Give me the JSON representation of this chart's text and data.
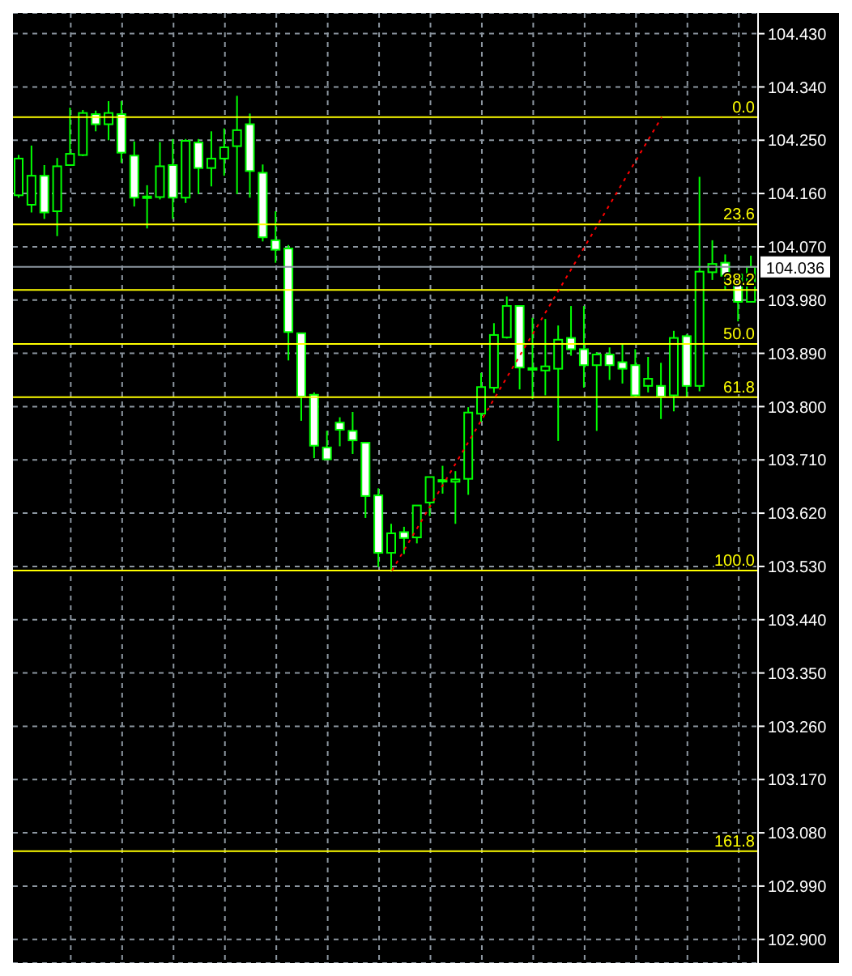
{
  "chart_data": {
    "type": "candlestick",
    "categories": [
      null,
      null,
      null,
      null,
      null,
      null,
      null,
      null,
      null,
      null,
      null,
      null,
      null,
      null,
      null,
      null,
      null,
      null,
      null,
      null,
      null,
      null,
      null,
      null,
      null,
      null,
      null,
      null,
      null,
      null,
      null,
      null,
      null,
      null,
      null,
      null,
      null,
      null,
      null,
      null,
      null,
      null,
      null,
      null,
      null,
      null,
      null,
      null,
      null,
      null,
      null,
      null,
      null,
      null,
      null,
      null,
      null,
      null
    ],
    "ohlc": [
      [
        104.157,
        104.225,
        104.153,
        104.219
      ],
      [
        104.141,
        104.241,
        104.128,
        104.19
      ],
      [
        104.19,
        104.208,
        104.117,
        104.128
      ],
      [
        104.13,
        104.22,
        104.088,
        104.206
      ],
      [
        104.208,
        104.305,
        104.208,
        104.227
      ],
      [
        104.225,
        104.301,
        104.223,
        104.296
      ],
      [
        104.294,
        104.3,
        104.265,
        104.277
      ],
      [
        104.277,
        104.316,
        104.25,
        104.296
      ],
      [
        104.294,
        104.316,
        104.212,
        104.229
      ],
      [
        104.224,
        104.248,
        104.138,
        104.153
      ],
      [
        104.154,
        104.174,
        104.101,
        104.155
      ],
      [
        104.154,
        104.247,
        104.15,
        104.206
      ],
      [
        104.208,
        104.252,
        104.117,
        104.153
      ],
      [
        104.153,
        104.252,
        104.144,
        104.249
      ],
      [
        104.246,
        104.252,
        104.159,
        104.203
      ],
      [
        104.203,
        104.265,
        104.172,
        104.219
      ],
      [
        104.219,
        104.27,
        104.19,
        104.238
      ],
      [
        104.24,
        104.325,
        104.159,
        104.267
      ],
      [
        104.277,
        104.295,
        104.153,
        104.198
      ],
      [
        104.195,
        104.209,
        104.079,
        104.086
      ],
      [
        104.081,
        104.13,
        104.043,
        104.065
      ],
      [
        104.067,
        104.073,
        103.878,
        103.926
      ],
      [
        103.924,
        103.924,
        103.776,
        103.817
      ],
      [
        103.82,
        103.824,
        103.713,
        103.734
      ],
      [
        103.731,
        103.759,
        103.711,
        103.711
      ],
      [
        103.773,
        103.782,
        103.733,
        103.761
      ],
      [
        103.759,
        103.791,
        103.72,
        103.743
      ],
      [
        103.739,
        103.739,
        103.612,
        103.649
      ],
      [
        103.65,
        103.662,
        103.529,
        103.553
      ],
      [
        103.553,
        103.602,
        103.521,
        103.586
      ],
      [
        103.588,
        103.597,
        103.551,
        103.578
      ],
      [
        103.579,
        103.633,
        103.569,
        103.633
      ],
      [
        103.638,
        103.681,
        103.615,
        103.681
      ],
      [
        103.675,
        103.7,
        103.653,
        103.676
      ],
      [
        103.673,
        103.691,
        103.602,
        103.677
      ],
      [
        103.678,
        103.799,
        103.651,
        103.79
      ],
      [
        103.788,
        103.857,
        103.774,
        103.833
      ],
      [
        103.832,
        103.941,
        103.823,
        103.921
      ],
      [
        103.917,
        103.986,
        103.915,
        103.97
      ],
      [
        103.97,
        103.97,
        103.829,
        103.866
      ],
      [
        103.864,
        103.95,
        103.813,
        103.865
      ],
      [
        103.861,
        103.948,
        103.819,
        103.868
      ],
      [
        103.864,
        103.937,
        103.742,
        103.913
      ],
      [
        103.916,
        103.97,
        103.886,
        103.897
      ],
      [
        103.897,
        103.97,
        103.832,
        103.87
      ],
      [
        103.87,
        103.892,
        103.759,
        103.888
      ],
      [
        103.888,
        103.9,
        103.845,
        103.87
      ],
      [
        103.875,
        103.906,
        103.839,
        103.864
      ],
      [
        103.87,
        103.897,
        103.817,
        103.819
      ],
      [
        103.835,
        103.884,
        103.824,
        103.847
      ],
      [
        103.835,
        103.874,
        103.779,
        103.817
      ],
      [
        103.819,
        103.928,
        103.792,
        103.916
      ],
      [
        103.919,
        103.922,
        103.817,
        103.835
      ],
      [
        103.835,
        104.188,
        103.826,
        104.028
      ],
      [
        104.027,
        104.081,
        104.014,
        104.041
      ],
      [
        104.043,
        104.057,
        103.996,
        104.021
      ],
      [
        104.023,
        104.023,
        103.944,
        103.977
      ],
      [
        103.977,
        104.055,
        103.977,
        104.036
      ]
    ],
    "series": [
      {
        "type": "line",
        "color": "#ff0000",
        "line_style": "dotted",
        "values": [
          null,
          null,
          null,
          null,
          null,
          null,
          null,
          null,
          null,
          null,
          null,
          null,
          null,
          null,
          null,
          null,
          null,
          null,
          null,
          null,
          null,
          null,
          null,
          null,
          null,
          null,
          null,
          null,
          null,
          103.523,
          null,
          null,
          null,
          null,
          null,
          null,
          null,
          null,
          null,
          null,
          null,
          null,
          null,
          null,
          null,
          null,
          null,
          null,
          null,
          null,
          104.289,
          null,
          null,
          null,
          null,
          null,
          null,
          null
        ]
      }
    ],
    "ylim": [
      102.86,
      104.465
    ],
    "yticks": [
      {
        "value": 102.9,
        "label": "102.900"
      },
      {
        "value": 102.99,
        "label": "102.990"
      },
      {
        "value": 103.08,
        "label": "103.080"
      },
      {
        "value": 103.17,
        "label": "103.170"
      },
      {
        "value": 103.26,
        "label": "103.260"
      },
      {
        "value": 103.35,
        "label": "103.350"
      },
      {
        "value": 103.44,
        "label": "103.440"
      },
      {
        "value": 103.53,
        "label": "103.530"
      },
      {
        "value": 103.62,
        "label": "103.620"
      },
      {
        "value": 103.71,
        "label": "103.710"
      },
      {
        "value": 103.8,
        "label": "103.800"
      },
      {
        "value": 103.89,
        "label": "103.890"
      },
      {
        "value": 103.98,
        "label": "103.980"
      },
      {
        "value": 104.07,
        "label": "104.070"
      },
      {
        "value": 104.16,
        "label": "104.160"
      },
      {
        "value": 104.25,
        "label": "104.250"
      },
      {
        "value": 104.34,
        "label": "104.340"
      },
      {
        "value": 104.43,
        "label": "104.430"
      }
    ],
    "ref_lines": [
      {
        "axis": "y",
        "value": 104.289,
        "color": "#ffff00"
      },
      {
        "axis": "y",
        "value": 104.108,
        "color": "#ffff00"
      },
      {
        "axis": "y",
        "value": 103.997,
        "color": "#ffff00"
      },
      {
        "axis": "y",
        "value": 103.906,
        "color": "#ffff00"
      },
      {
        "axis": "y",
        "value": 103.816,
        "color": "#ffff00"
      },
      {
        "axis": "y",
        "value": 103.523,
        "color": "#ffff00"
      },
      {
        "axis": "y",
        "value": 103.049,
        "color": "#ffff00"
      },
      {
        "axis": "y",
        "value": 104.036,
        "label": "104.036",
        "color": "#8c96a0"
      }
    ],
    "annotations": [
      {
        "text": "0.0",
        "y": 104.289
      },
      {
        "text": "23.6",
        "y": 104.108
      },
      {
        "text": "38.2",
        "y": 103.997
      },
      {
        "text": "50.0",
        "y": 103.906
      },
      {
        "text": "61.8",
        "y": 103.816
      },
      {
        "text": "100.0",
        "y": 103.523
      },
      {
        "text": "161.8",
        "y": 103.049
      }
    ],
    "grid": true,
    "tick_labels": "y"
  }
}
